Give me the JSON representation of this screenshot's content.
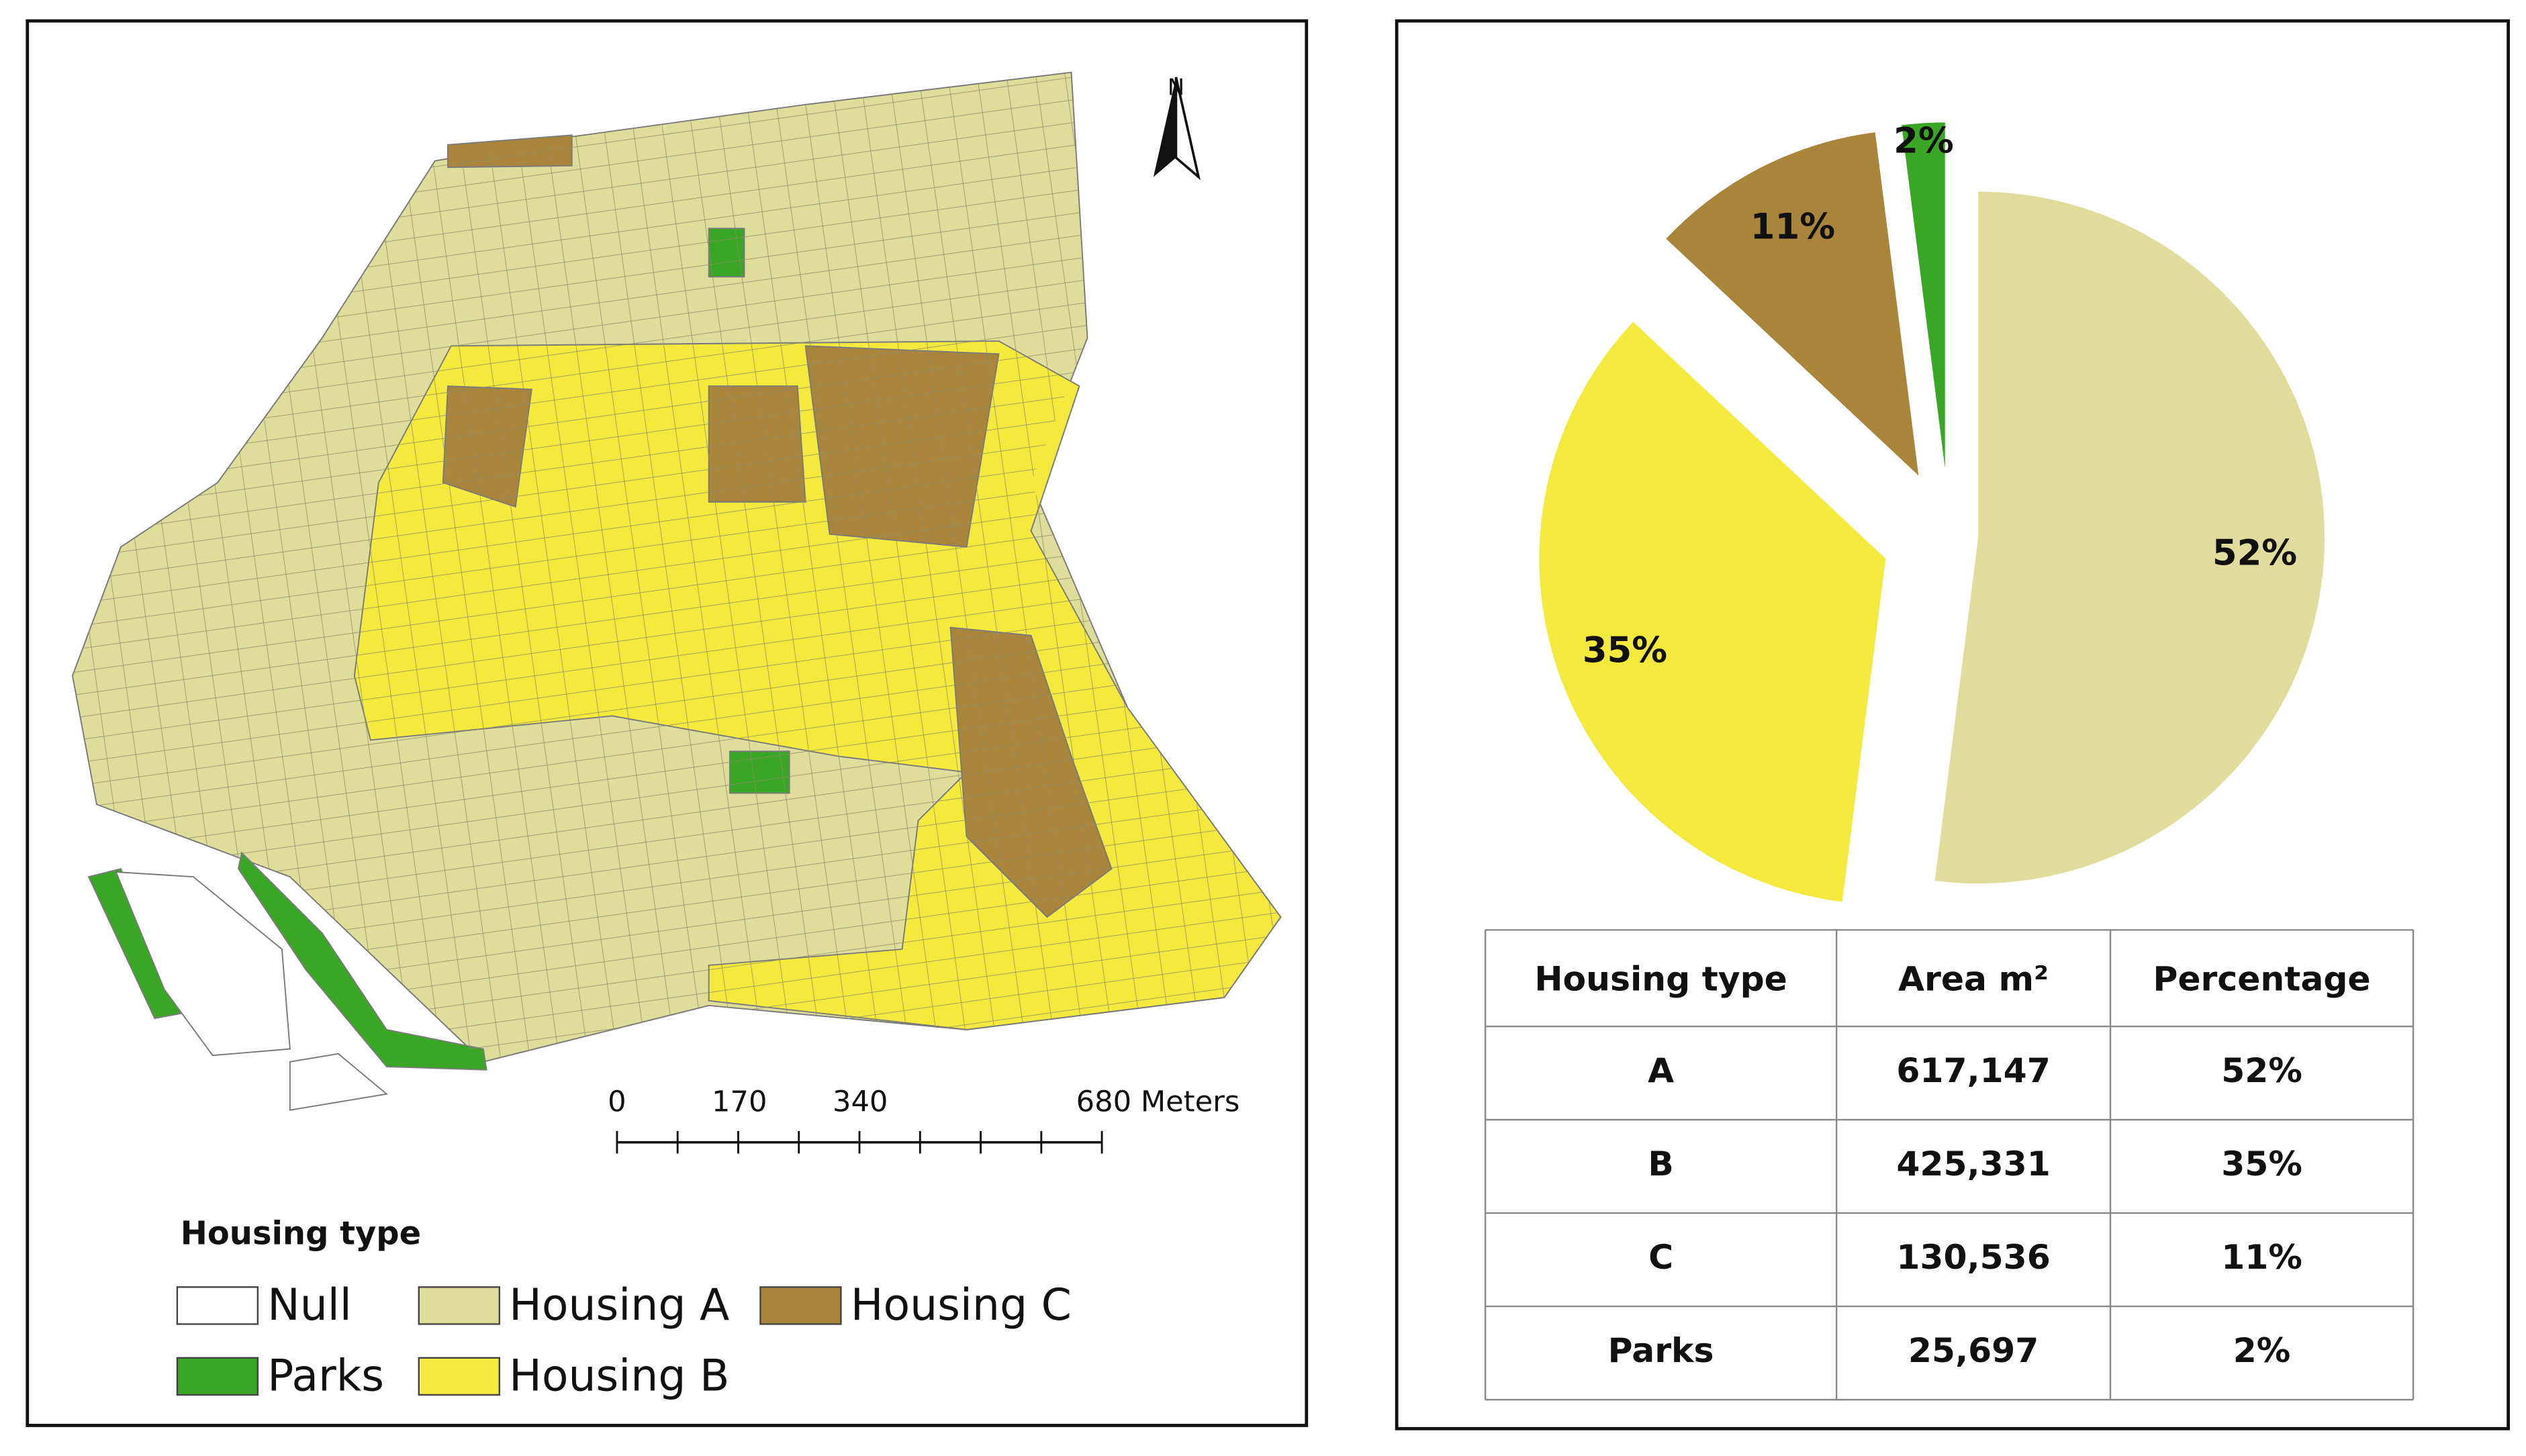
{
  "map": {
    "north": "N",
    "scale_labels": [
      "0",
      "170",
      "340",
      "680 Meters"
    ],
    "legend": {
      "title": "Housing type",
      "items": [
        {
          "label": "Null",
          "color": "#ffffff"
        },
        {
          "label": "Housing A",
          "color": "#dedd9a"
        },
        {
          "label": "Housing C",
          "color": "#a8853b"
        },
        {
          "label": "Parks",
          "color": "#3aa625"
        },
        {
          "label": "Housing B",
          "color": "#f4ea3d"
        }
      ]
    }
  },
  "chart_data": {
    "type": "pie",
    "values": [
      52,
      35,
      11,
      2
    ],
    "value_labels": [
      "52%",
      "35%",
      "11%",
      "2%"
    ],
    "colors": [
      "#e0dd9c",
      "#f4ea3d",
      "#a8853b",
      "#3aa625"
    ]
  },
  "table": {
    "header": [
      "Housing type",
      "Area m²",
      "Percentage"
    ],
    "rows": [
      [
        "A",
        "617,147",
        "52%"
      ],
      [
        "B",
        "425,331",
        "35%"
      ],
      [
        "C",
        "130,536",
        "11%"
      ],
      [
        "Parks",
        "25,697",
        "2%"
      ]
    ]
  }
}
